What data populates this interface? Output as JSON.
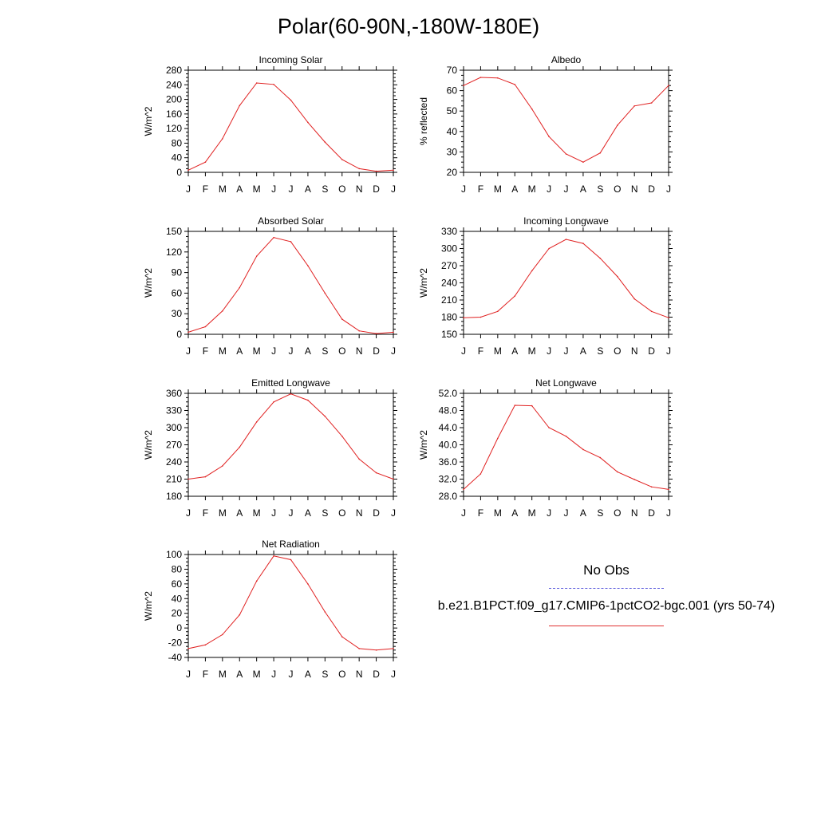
{
  "title": "Polar(60-90N,-180W-180E)",
  "legend": {
    "obs_label": "No Obs",
    "model_label": "b.e21.B1PCT.f09_g17.CMIP6-1pctCO2-bgc.001 (yrs 50-74)",
    "obs_color": "#6a6ae0",
    "model_color": "#e02020"
  },
  "chart_data": [
    {
      "type": "line",
      "title": "Incoming Solar",
      "ylabel": "W/m^2",
      "x": [
        "J",
        "F",
        "M",
        "A",
        "M",
        "J",
        "J",
        "A",
        "S",
        "O",
        "N",
        "D",
        "J"
      ],
      "ylim": [
        0,
        280
      ],
      "yticks": [
        "0",
        "40",
        "80",
        "120",
        "160",
        "200",
        "240",
        "280"
      ],
      "series": [
        {
          "values": [
            6,
            28,
            92,
            183,
            245,
            241,
            198,
            137,
            83,
            35,
            10,
            3,
            6
          ]
        }
      ]
    },
    {
      "type": "line",
      "title": "Albedo",
      "ylabel": "% reflected",
      "x": [
        "J",
        "F",
        "M",
        "A",
        "M",
        "J",
        "J",
        "A",
        "S",
        "O",
        "N",
        "D",
        "J"
      ],
      "ylim": [
        20,
        70
      ],
      "yticks": [
        "20",
        "30",
        "40",
        "50",
        "60",
        "70"
      ],
      "series": [
        {
          "values": [
            62.5,
            66.5,
            66.2,
            63.0,
            51.0,
            37.5,
            29.0,
            25.0,
            29.5,
            43.0,
            52.5,
            54.0,
            62.5
          ]
        }
      ]
    },
    {
      "type": "line",
      "title": "Absorbed Solar",
      "ylabel": "W/m^2",
      "x": [
        "J",
        "F",
        "M",
        "A",
        "M",
        "J",
        "J",
        "A",
        "S",
        "O",
        "N",
        "D",
        "J"
      ],
      "ylim": [
        0,
        150
      ],
      "yticks": [
        "0",
        "30",
        "60",
        "90",
        "120",
        "150"
      ],
      "series": [
        {
          "values": [
            3,
            11,
            34,
            68,
            114,
            141,
            135,
            100,
            60,
            22,
            5,
            1,
            3
          ]
        }
      ]
    },
    {
      "type": "line",
      "title": "Incoming Longwave",
      "ylabel": "W/m^2",
      "x": [
        "J",
        "F",
        "M",
        "A",
        "M",
        "J",
        "J",
        "A",
        "S",
        "O",
        "N",
        "D",
        "J"
      ],
      "ylim": [
        150,
        330
      ],
      "yticks": [
        "150",
        "180",
        "210",
        "240",
        "270",
        "300",
        "330"
      ],
      "series": [
        {
          "values": [
            179,
            180,
            190,
            217,
            261,
            300,
            316,
            309,
            283,
            251,
            212,
            190,
            179
          ]
        }
      ]
    },
    {
      "type": "line",
      "title": "Emitted Longwave",
      "ylabel": "W/m^2",
      "x": [
        "J",
        "F",
        "M",
        "A",
        "M",
        "J",
        "J",
        "A",
        "S",
        "O",
        "N",
        "D",
        "J"
      ],
      "ylim": [
        180,
        360
      ],
      "yticks": [
        "180",
        "210",
        "240",
        "270",
        "300",
        "330",
        "360"
      ],
      "series": [
        {
          "values": [
            210,
            214,
            233,
            266,
            310,
            345,
            359,
            348,
            320,
            285,
            245,
            221,
            210
          ]
        }
      ]
    },
    {
      "type": "line",
      "title": "Net Longwave",
      "ylabel": "W/m^2",
      "x": [
        "J",
        "F",
        "M",
        "A",
        "M",
        "J",
        "J",
        "A",
        "S",
        "O",
        "N",
        "D",
        "J"
      ],
      "ylim": [
        28,
        52
      ],
      "yticks": [
        "28.0",
        "32.0",
        "36.0",
        "40.0",
        "44.0",
        "48.0",
        "52.0"
      ],
      "series": [
        {
          "values": [
            29.6,
            33.2,
            41.5,
            49.2,
            49.1,
            44.0,
            42.0,
            38.9,
            37.0,
            33.7,
            31.9,
            30.2,
            29.6
          ]
        }
      ]
    },
    {
      "type": "line",
      "title": "Net Radiation",
      "ylabel": "W/m^2",
      "x": [
        "J",
        "F",
        "M",
        "A",
        "M",
        "J",
        "J",
        "A",
        "S",
        "O",
        "N",
        "D",
        "J"
      ],
      "ylim": [
        -40,
        100
      ],
      "yticks": [
        "-40",
        "-20",
        "0",
        "20",
        "40",
        "60",
        "80",
        "100"
      ],
      "series": [
        {
          "values": [
            -28,
            -23,
            -9,
            18,
            64,
            98,
            93,
            60,
            22,
            -12,
            -28,
            -30,
            -28
          ]
        }
      ]
    }
  ]
}
